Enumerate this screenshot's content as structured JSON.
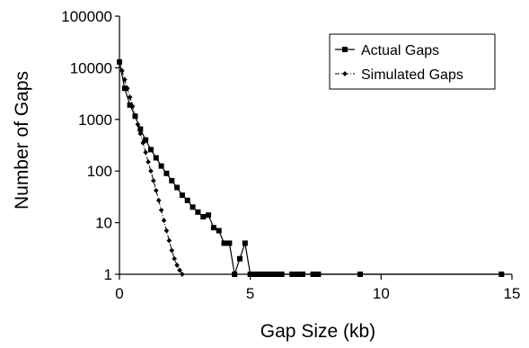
{
  "chart_data": {
    "type": "line",
    "title": "",
    "xlabel": "Gap Size (kb)",
    "ylabel": "Number of Gaps",
    "xlim": [
      0,
      15
    ],
    "ylim": [
      1,
      100000
    ],
    "yscale": "log",
    "grid": false,
    "legend_position": "top-right",
    "x_ticks": [
      0,
      5,
      10,
      15
    ],
    "x_tick_labels": [
      "0",
      "5",
      "10",
      "15"
    ],
    "y_ticks": [
      1,
      10,
      100,
      1000,
      10000,
      100000
    ],
    "y_tick_labels": [
      "1",
      "10",
      "100",
      "1000",
      "10000",
      "100000"
    ],
    "series": [
      {
        "name": "Actual Gaps",
        "marker": "square",
        "line_style": "solid",
        "color": "#000000",
        "x": [
          0,
          0.2,
          0.4,
          0.6,
          0.8,
          1.0,
          1.2,
          1.4,
          1.6,
          1.8,
          2.0,
          2.2,
          2.4,
          2.6,
          2.8,
          3.0,
          3.2,
          3.4,
          3.6,
          3.8,
          4.0,
          4.2,
          4.4,
          4.6,
          4.8,
          5.0,
          5.2,
          5.4,
          5.6,
          5.8,
          6.0,
          6.2,
          6.4,
          6.6,
          6.8,
          7.0,
          7.2,
          7.4,
          7.6,
          7.8,
          8.0,
          8.2,
          8.4,
          8.6,
          8.8,
          9.0,
          9.2,
          9.4,
          9.6,
          9.8,
          10.0,
          10.2,
          10.4,
          10.6,
          10.8,
          11.0,
          11.2,
          11.4,
          11.6,
          11.8,
          12.0,
          12.2,
          12.4,
          12.6,
          12.8,
          13.0,
          13.2,
          13.4,
          13.6,
          13.8,
          14.0,
          14.2,
          14.4,
          14.6
        ],
        "y": [
          13000,
          4000,
          1900,
          1150,
          650,
          400,
          260,
          180,
          125,
          90,
          65,
          48,
          34,
          27,
          20,
          16,
          13,
          14,
          8,
          7,
          4,
          4,
          1,
          2,
          4,
          1,
          1,
          1,
          1,
          1,
          1,
          1,
          1,
          1,
          1,
          1,
          1,
          1,
          1,
          1,
          1,
          1,
          1,
          1,
          1,
          1,
          1,
          1,
          1,
          1,
          1,
          1,
          1,
          1,
          1,
          1,
          1,
          1,
          1,
          1,
          1,
          1,
          1,
          1,
          1,
          1,
          1,
          1,
          1,
          1,
          1,
          1,
          1,
          1
        ],
        "marker_x": [
          0,
          0.2,
          0.4,
          0.6,
          0.8,
          1.0,
          1.2,
          1.4,
          1.6,
          1.8,
          2.0,
          2.2,
          2.4,
          2.6,
          2.8,
          3.0,
          3.2,
          3.4,
          3.6,
          3.8,
          4.0,
          4.2,
          4.4,
          4.6,
          4.8,
          5.0,
          5.2,
          5.4,
          5.6,
          5.8,
          6.0,
          6.2,
          6.6,
          6.8,
          7.0,
          7.4,
          7.6,
          9.2,
          14.6
        ]
      },
      {
        "name": "Simulated Gaps",
        "marker": "diamond",
        "line_style": "dashdot",
        "color": "#000000",
        "x": [
          0,
          0.1,
          0.2,
          0.3,
          0.4,
          0.5,
          0.6,
          0.7,
          0.8,
          0.9,
          1.0,
          1.1,
          1.2,
          1.3,
          1.4,
          1.5,
          1.6,
          1.7,
          1.8,
          1.9,
          2.0,
          2.1,
          2.2,
          2.3,
          2.4
        ],
        "y": [
          13000,
          8800,
          5900,
          4000,
          2700,
          1800,
          1200,
          800,
          530,
          350,
          230,
          150,
          100,
          65,
          42,
          27,
          17.5,
          11,
          7,
          4.5,
          2.9,
          2.0,
          1.5,
          1.2,
          1
        ]
      }
    ]
  }
}
